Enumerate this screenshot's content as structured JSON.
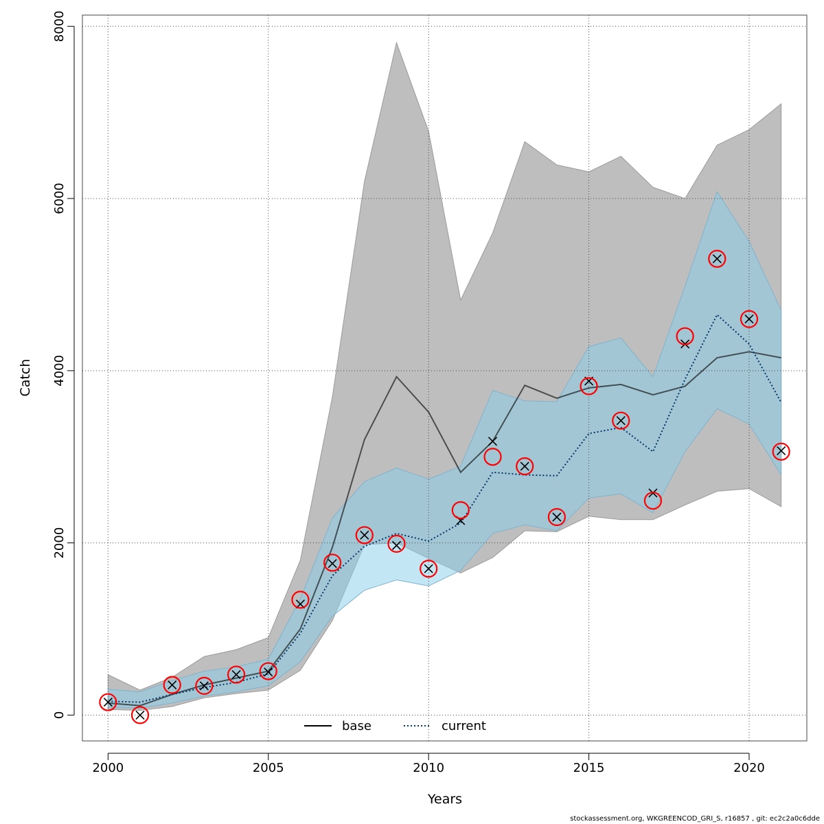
{
  "footer": "stockassessment.org, WKGREENCOD_GRI_S, r16857 , git: ec2c2a0c6dde",
  "chart_data": {
    "type": "line",
    "xlabel": "Years",
    "ylabel": "Catch",
    "xlim": [
      1999.2,
      2021.8
    ],
    "ylim": [
      -300,
      8130
    ],
    "grid": true,
    "legend_position": "bottom-center",
    "x_ticks": [
      2000,
      2005,
      2010,
      2015,
      2020
    ],
    "y_ticks": [
      0,
      2000,
      4000,
      6000,
      8000
    ],
    "x": [
      2000,
      2001,
      2002,
      2003,
      2004,
      2005,
      2006,
      2007,
      2008,
      2009,
      2010,
      2011,
      2012,
      2013,
      2014,
      2015,
      2016,
      2017,
      2018,
      2019,
      2020,
      2021
    ],
    "series": [
      {
        "name": "base",
        "line_style": "solid",
        "color": "#000000",
        "band_color": "#bebebe",
        "values": [
          140,
          110,
          240,
          350,
          430,
          510,
          1000,
          1950,
          3200,
          3930,
          3520,
          2820,
          3180,
          3830,
          3680,
          3800,
          3840,
          3720,
          3820,
          4150,
          4220,
          4150
        ],
        "lower": [
          65,
          55,
          100,
          200,
          250,
          290,
          520,
          1100,
          1980,
          2000,
          1820,
          1650,
          1830,
          2140,
          2130,
          2310,
          2270,
          2270,
          2440,
          2600,
          2630,
          2420
        ],
        "upper": [
          470,
          290,
          440,
          680,
          760,
          900,
          1800,
          3700,
          6200,
          7810,
          6780,
          4820,
          5600,
          6660,
          6390,
          6310,
          6490,
          6130,
          6000,
          6620,
          6800,
          7100
        ]
      },
      {
        "name": "current",
        "line_style": "dotted",
        "color": "#003366",
        "band_color": "#87ceeb",
        "values": [
          160,
          150,
          240,
          320,
          380,
          480,
          950,
          1620,
          1960,
          2110,
          2020,
          2230,
          2820,
          2790,
          2780,
          3270,
          3340,
          3060,
          3900,
          4650,
          4310,
          3630
        ],
        "lower": [
          90,
          80,
          140,
          220,
          270,
          340,
          620,
          1150,
          1450,
          1570,
          1500,
          1680,
          2110,
          2210,
          2140,
          2520,
          2570,
          2350,
          3060,
          3560,
          3380,
          2790
        ],
        "upper": [
          300,
          270,
          400,
          510,
          560,
          650,
          1350,
          2290,
          2710,
          2870,
          2740,
          2890,
          3770,
          3650,
          3640,
          4280,
          4380,
          3930,
          4980,
          6080,
          5500,
          4700
        ]
      }
    ],
    "observed": {
      "marker": "open-circle",
      "color": "#ff0000",
      "values": [
        150,
        0,
        350,
        340,
        470,
        510,
        1340,
        1770,
        2090,
        1990,
        1700,
        2380,
        3000,
        2890,
        2300,
        3820,
        3420,
        2490,
        4400,
        5300,
        4600,
        3060
      ]
    },
    "base_predicted": {
      "marker": "cross",
      "color": "#000000",
      "values": [
        150,
        0,
        350,
        340,
        470,
        500,
        1290,
        1760,
        2090,
        1970,
        1700,
        2260,
        3180,
        2890,
        2300,
        3880,
        3420,
        2580,
        4310,
        5300,
        4600,
        3070
      ]
    }
  }
}
